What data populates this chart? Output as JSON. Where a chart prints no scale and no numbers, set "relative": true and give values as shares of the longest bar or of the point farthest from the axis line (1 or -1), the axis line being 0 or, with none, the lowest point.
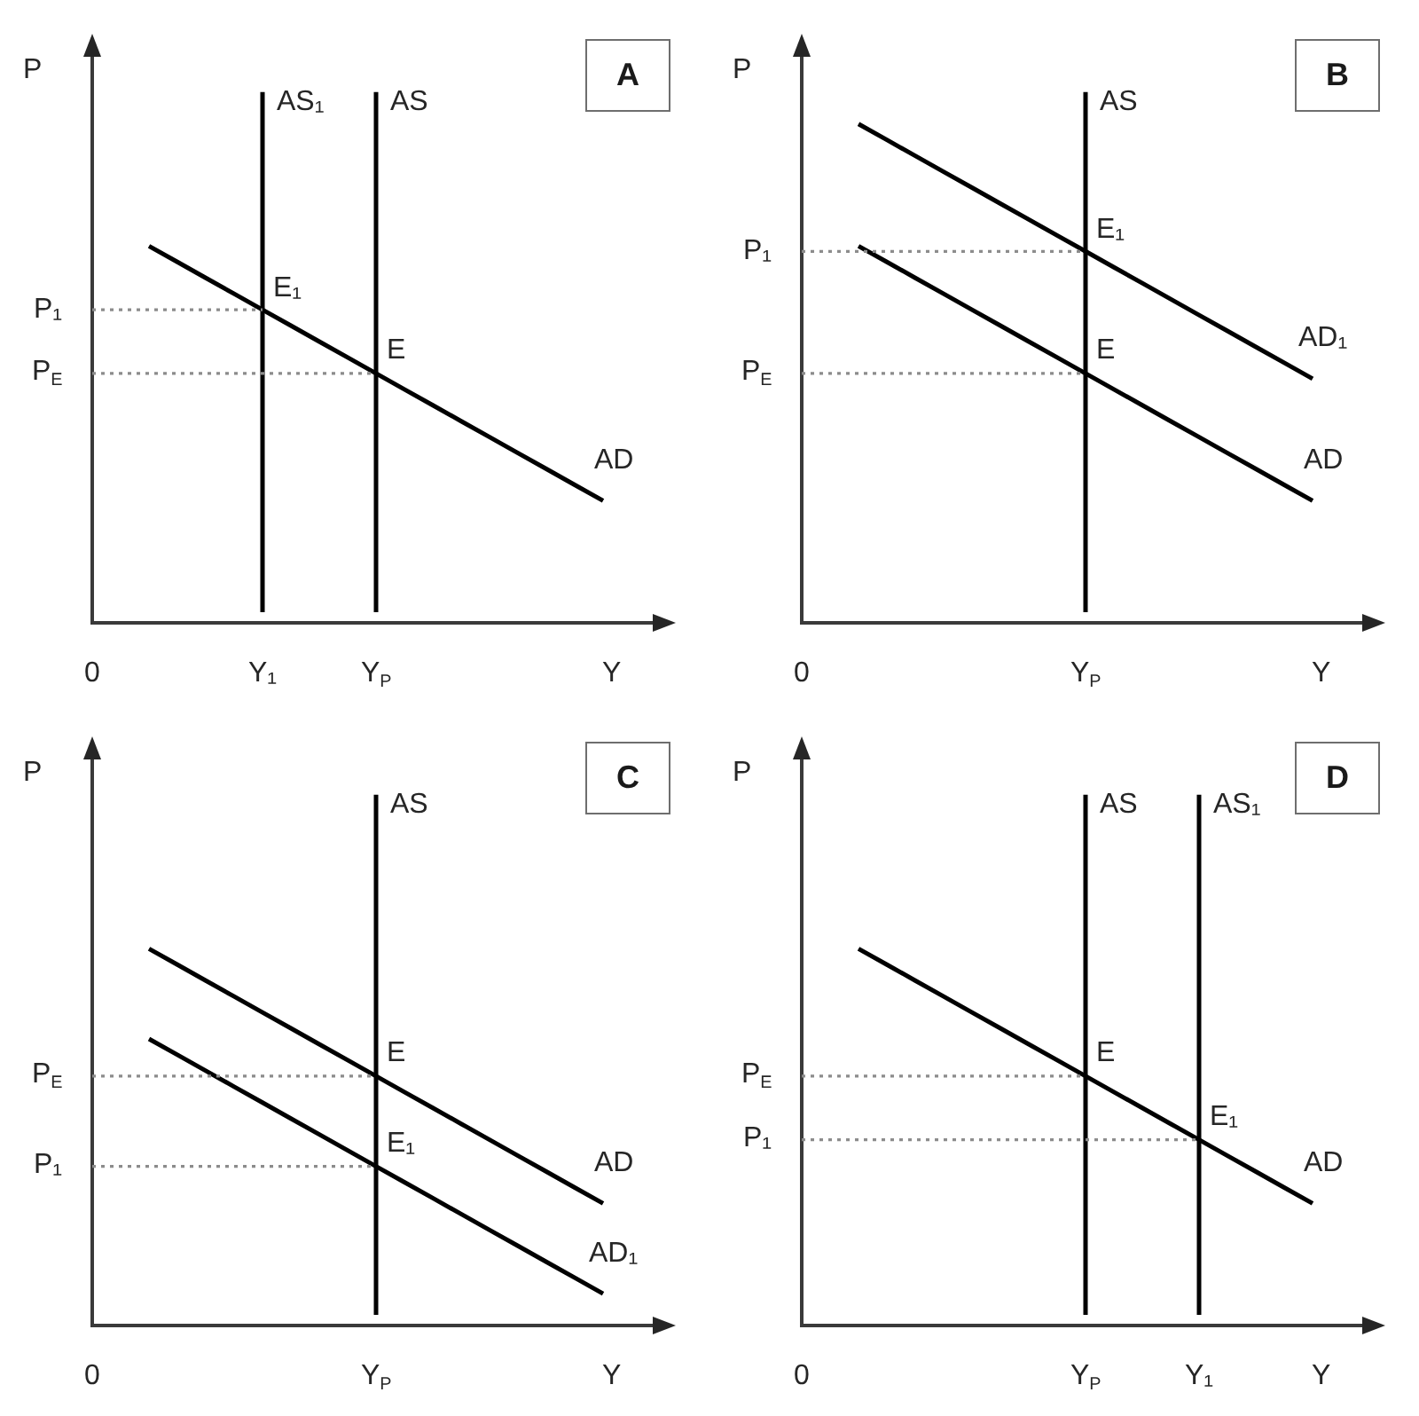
{
  "chart_data": [
    {
      "type": "line",
      "title": "A",
      "xlabel": "Y",
      "ylabel": "P",
      "relative": true,
      "legend": false,
      "grid": false,
      "marker": "none",
      "line_style": "solid",
      "categories": [
        "0",
        null,
        null,
        null,
        null,
        null,
        "Y₁",
        null,
        null,
        null,
        "Y$_{P}$",
        null,
        null,
        null,
        null,
        null,
        null,
        null,
        null,
        null,
        null
      ],
      "series": [
        {
          "name": "P₁",
          "color": "#8c8c8c",
          "line_style": "dotted",
          "values": [
            0.59,
            0.59,
            0.59,
            0.59,
            0.59,
            0.59,
            0.59,
            null,
            null,
            null,
            null,
            null,
            null,
            null,
            null,
            null,
            null,
            null,
            null,
            null,
            null
          ]
        },
        {
          "name": "P$_{E}$",
          "color": "#8c8c8c",
          "line_style": "dotted",
          "values": [
            0.47,
            0.47,
            0.47,
            0.47,
            0.47,
            0.47,
            0.47,
            0.47,
            0.47,
            0.47,
            0.47,
            null,
            null,
            null,
            null,
            null,
            null,
            null,
            null,
            null,
            null
          ]
        },
        {
          "name": "AS₁",
          "color": "#000000",
          "x": [
            "Y₁",
            "Y₁"
          ],
          "values": [
            0.02,
            1
          ]
        },
        {
          "name": "AS",
          "color": "#000000",
          "x": [
            "Y$_{P}$",
            "Y$_{P}$"
          ],
          "values": [
            0.02,
            1
          ]
        },
        {
          "name": "AD",
          "color": "#000000",
          "values": [
            null,
            null,
            0.71,
            0.68,
            0.65,
            0.62,
            0.59,
            0.56,
            0.53,
            0.5,
            0.47,
            0.44,
            0.41,
            0.38,
            0.35,
            0.32,
            0.29,
            0.26,
            0.23,
            null,
            null
          ]
        }
      ],
      "annotations": [
        {
          "text": "E₁",
          "x": "Y₁",
          "y": 0.59
        },
        {
          "text": "E",
          "x": "Y$_{P}$",
          "y": 0.47
        }
      ]
    },
    {
      "type": "line",
      "title": "B",
      "xlabel": "Y",
      "ylabel": "P",
      "relative": true,
      "legend": false,
      "grid": false,
      "marker": "none",
      "line_style": "solid",
      "categories": [
        "0",
        null,
        null,
        null,
        null,
        null,
        null,
        null,
        null,
        null,
        "Y$_{P}$",
        null,
        null,
        null,
        null,
        null,
        null,
        null,
        null,
        null,
        null
      ],
      "series": [
        {
          "name": "P₁",
          "color": "#8c8c8c",
          "line_style": "dotted",
          "values": [
            0.7,
            0.7,
            0.7,
            0.7,
            0.7,
            0.7,
            0.7,
            0.7,
            0.7,
            0.7,
            0.7,
            null,
            null,
            null,
            null,
            null,
            null,
            null,
            null,
            null,
            null
          ]
        },
        {
          "name": "P$_{E}$",
          "color": "#8c8c8c",
          "line_style": "dotted",
          "values": [
            0.47,
            0.47,
            0.47,
            0.47,
            0.47,
            0.47,
            0.47,
            0.47,
            0.47,
            0.47,
            0.47,
            null,
            null,
            null,
            null,
            null,
            null,
            null,
            null,
            null,
            null
          ]
        },
        {
          "name": "AS",
          "color": "#000000",
          "x": [
            "Y$_{P}$",
            "Y$_{P}$"
          ],
          "values": [
            0.02,
            1
          ]
        },
        {
          "name": "AD₁",
          "color": "#000000",
          "values": [
            null,
            null,
            0.94,
            0.91,
            0.88,
            0.85,
            0.82,
            0.79,
            0.76,
            0.73,
            0.7,
            0.67,
            0.64,
            0.61,
            0.58,
            0.55,
            0.52,
            0.49,
            0.46,
            null,
            null
          ]
        },
        {
          "name": "AD",
          "color": "#000000",
          "values": [
            null,
            null,
            0.71,
            0.68,
            0.65,
            0.62,
            0.59,
            0.56,
            0.53,
            0.5,
            0.47,
            0.44,
            0.41,
            0.38,
            0.35,
            0.32,
            0.29,
            0.26,
            0.23,
            null,
            null
          ]
        }
      ],
      "annotations": [
        {
          "text": "E₁",
          "x": "Y$_{P}$",
          "y": 0.7
        },
        {
          "text": "E",
          "x": "Y$_{P}$",
          "y": 0.47
        }
      ]
    },
    {
      "type": "line",
      "title": "C",
      "xlabel": "Y",
      "ylabel": "P",
      "relative": true,
      "legend": false,
      "grid": false,
      "marker": "none",
      "line_style": "solid",
      "categories": [
        "0",
        null,
        null,
        null,
        null,
        null,
        null,
        null,
        null,
        null,
        "Y$_{P}$",
        null,
        null,
        null,
        null,
        null,
        null,
        null,
        null,
        null,
        null
      ],
      "series": [
        {
          "name": "P$_{E}$",
          "color": "#8c8c8c",
          "line_style": "dotted",
          "values": [
            0.47,
            0.47,
            0.47,
            0.47,
            0.47,
            0.47,
            0.47,
            0.47,
            0.47,
            0.47,
            0.47,
            null,
            null,
            null,
            null,
            null,
            null,
            null,
            null,
            null,
            null
          ]
        },
        {
          "name": "P₁",
          "color": "#8c8c8c",
          "line_style": "dotted",
          "values": [
            0.3,
            0.3,
            0.3,
            0.3,
            0.3,
            0.3,
            0.3,
            0.3,
            0.3,
            0.3,
            0.3,
            null,
            null,
            null,
            null,
            null,
            null,
            null,
            null,
            null,
            null
          ]
        },
        {
          "name": "AS",
          "color": "#000000",
          "x": [
            "Y$_{P}$",
            "Y$_{P}$"
          ],
          "values": [
            0.02,
            1
          ]
        },
        {
          "name": "AD",
          "color": "#000000",
          "values": [
            null,
            null,
            0.71,
            0.68,
            0.65,
            0.62,
            0.59,
            0.56,
            0.53,
            0.5,
            0.47,
            0.44,
            0.41,
            0.38,
            0.35,
            0.32,
            0.29,
            0.26,
            0.23,
            null,
            null
          ]
        },
        {
          "name": "AD₁",
          "color": "#000000",
          "values": [
            null,
            null,
            0.54,
            0.51,
            0.48,
            0.45,
            0.42,
            0.39,
            0.36,
            0.33,
            0.3,
            0.27,
            0.24,
            0.21,
            0.18,
            0.15,
            0.12,
            0.09,
            0.06,
            null,
            null
          ]
        }
      ],
      "annotations": [
        {
          "text": "E",
          "x": "Y$_{P}$",
          "y": 0.47
        },
        {
          "text": "E₁",
          "x": "Y$_{P}$",
          "y": 0.3
        }
      ]
    },
    {
      "type": "line",
      "title": "D",
      "xlabel": "Y",
      "ylabel": "P",
      "relative": true,
      "legend": false,
      "grid": false,
      "marker": "none",
      "line_style": "solid",
      "categories": [
        "0",
        null,
        null,
        null,
        null,
        null,
        null,
        null,
        null,
        null,
        "Y$_{P}$",
        null,
        null,
        null,
        "Y₁",
        null,
        null,
        null,
        null,
        null,
        null
      ],
      "series": [
        {
          "name": "P$_{E}$",
          "color": "#8c8c8c",
          "line_style": "dotted",
          "values": [
            0.47,
            0.47,
            0.47,
            0.47,
            0.47,
            0.47,
            0.47,
            0.47,
            0.47,
            0.47,
            0.47,
            null,
            null,
            null,
            null,
            null,
            null,
            null,
            null,
            null,
            null
          ]
        },
        {
          "name": "P₁",
          "color": "#8c8c8c",
          "line_style": "dotted",
          "values": [
            0.35,
            0.35,
            0.35,
            0.35,
            0.35,
            0.35,
            0.35,
            0.35,
            0.35,
            0.35,
            0.35,
            0.35,
            0.35,
            0.35,
            0.35,
            null,
            null,
            null,
            null,
            null,
            null
          ]
        },
        {
          "name": "AS",
          "color": "#000000",
          "x": [
            "Y$_{P}$",
            "Y$_{P}$"
          ],
          "values": [
            0.02,
            1
          ]
        },
        {
          "name": "AS₁",
          "color": "#000000",
          "x": [
            "Y₁",
            "Y₁"
          ],
          "values": [
            0.02,
            1
          ]
        },
        {
          "name": "AD",
          "color": "#000000",
          "values": [
            null,
            null,
            0.71,
            0.68,
            0.65,
            0.62,
            0.59,
            0.56,
            0.53,
            0.5,
            0.47,
            0.44,
            0.41,
            0.38,
            0.35,
            0.32,
            0.29,
            0.26,
            0.23,
            null,
            null
          ]
        }
      ],
      "annotations": [
        {
          "text": "E",
          "x": "Y$_{P}$",
          "y": 0.47
        },
        {
          "text": "E₁",
          "x": "Y₁",
          "y": 0.35
        }
      ]
    }
  ]
}
